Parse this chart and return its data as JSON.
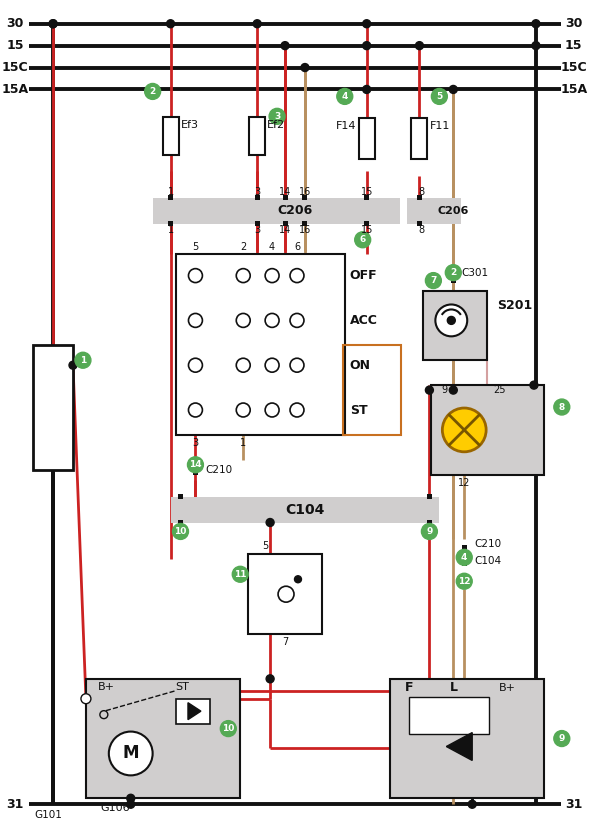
{
  "bg": "#ffffff",
  "red": "#cc2222",
  "black": "#111111",
  "tan": "#b89060",
  "pink": "#d4a0a0",
  "gray": "#d0cece",
  "green": "#55aa55",
  "yellow": "#ffcc00",
  "bus_labels": [
    "30",
    "15",
    "15C",
    "15A"
  ],
  "gnd_label": "31"
}
